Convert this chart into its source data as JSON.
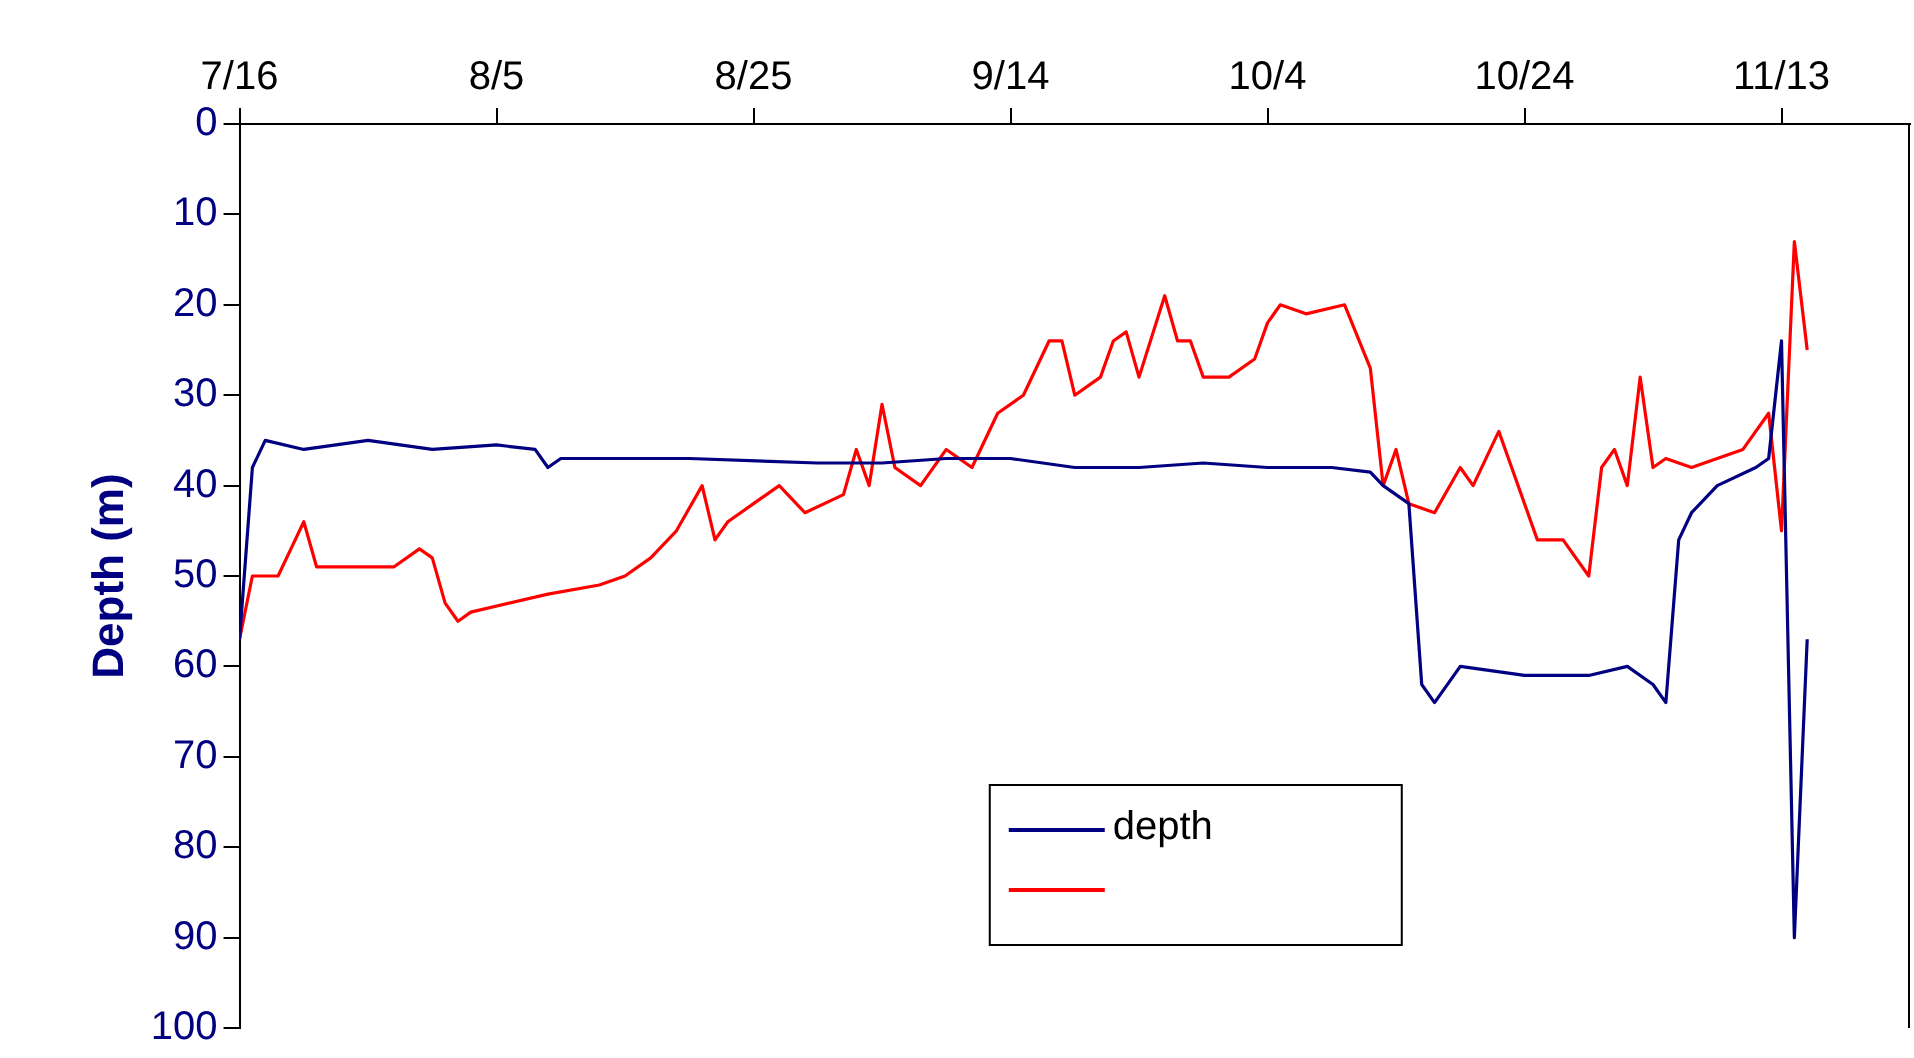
{
  "chart_data": {
    "type": "line",
    "ylabel": "Depth (m)",
    "xlim": [
      "--07-16",
      "--11-23"
    ],
    "xticks": [
      {
        "value": "--07-16",
        "label": "7/16"
      },
      {
        "value": "--08-05",
        "label": "8/5"
      },
      {
        "value": "--08-25",
        "label": "8/25"
      },
      {
        "value": "--09-14",
        "label": "9/14"
      },
      {
        "value": "--10-04",
        "label": "10/4"
      },
      {
        "value": "--10-24",
        "label": "10/24"
      },
      {
        "value": "--11-13",
        "label": "11/13"
      }
    ],
    "ylim": [
      100,
      0
    ],
    "yticks": [
      0,
      10,
      20,
      30,
      40,
      50,
      60,
      70,
      80,
      90,
      100
    ],
    "grid": false,
    "legend": "bottom",
    "marker": "none",
    "line_style": "solid",
    "series": [
      {
        "name": "depth",
        "color": "#000080",
        "x": [
          "--07-16",
          "--07-17",
          "--07-18",
          "--07-21",
          "--07-26",
          "--07-31",
          "--08-05",
          "--08-08",
          "--08-09",
          "--08-10",
          "--08-20",
          "--08-30",
          "--09-04",
          "--09-09",
          "--09-14",
          "--09-19",
          "--09-24",
          "--09-29",
          "--10-04",
          "--10-09",
          "--10-12",
          "--10-13",
          "--10-15",
          "--10-16",
          "--10-17",
          "--10-19",
          "--10-24",
          "--10-29",
          "--11-01",
          "--11-03",
          "--11-04",
          "--11-05",
          "--11-06",
          "--11-08",
          "--11-11",
          "--11-12",
          "--11-13",
          "--11-14",
          "--11-15"
        ],
        "values": [
          57,
          38,
          35,
          36,
          35,
          36,
          35.5,
          36,
          38,
          37,
          37,
          37.5,
          37.5,
          37,
          37,
          38,
          38,
          37.5,
          38,
          38,
          38.5,
          40,
          42,
          62,
          64,
          60,
          61,
          61,
          60,
          62,
          64,
          46,
          43,
          40,
          38,
          37,
          24,
          90,
          57
        ]
      },
      {
        "color": "#ff0000",
        "x": [
          "--07-16",
          "--07-17",
          "--07-19",
          "--07-20",
          "--07-21",
          "--07-22",
          "--07-28",
          "--07-30",
          "--07-31",
          "--08-01",
          "--08-02",
          "--08-03",
          "--08-09",
          "--08-13",
          "--08-15",
          "--08-17",
          "--08-19",
          "--08-21",
          "--08-22",
          "--08-23",
          "--08-25",
          "--08-27",
          "--08-29",
          "--09-01",
          "--09-02",
          "--09-03",
          "--09-04",
          "--09-05",
          "--09-07",
          "--09-09",
          "--09-11",
          "--09-13",
          "--09-15",
          "--09-17",
          "--09-18",
          "--09-19",
          "--09-21",
          "--09-22",
          "--09-23",
          "--09-24",
          "--09-26",
          "--09-27",
          "--09-28",
          "--09-29",
          "--10-01",
          "--10-03",
          "--10-04",
          "--10-05",
          "--10-07",
          "--10-10",
          "--10-12",
          "--10-13",
          "--10-14",
          "--10-15",
          "--10-17",
          "--10-19",
          "--10-20",
          "--10-22",
          "--10-23",
          "--10-24",
          "--10-25",
          "--10-27",
          "--10-29",
          "--10-30",
          "--10-31",
          "--11-01",
          "--11-02",
          "--11-03",
          "--11-04",
          "--11-06",
          "--11-08",
          "--11-10",
          "--11-12",
          "--11-13",
          "--11-14",
          "--11-15"
        ],
        "values": [
          57,
          50,
          50,
          47,
          44,
          49,
          49,
          47,
          48,
          53,
          55,
          54,
          52,
          51,
          50,
          48,
          45,
          40,
          46,
          44,
          42,
          40,
          43,
          41,
          36,
          40,
          31,
          38,
          40,
          36,
          38,
          32,
          30,
          24,
          24,
          30,
          28,
          24,
          23,
          28,
          19,
          24,
          24,
          28,
          28,
          26,
          22,
          20,
          21,
          20,
          27,
          40,
          36,
          42,
          43,
          38,
          40,
          34,
          38,
          42,
          46,
          46,
          50,
          38,
          36,
          40,
          28,
          38,
          37,
          38,
          37,
          36,
          32,
          45,
          13,
          25
        ]
      }
    ]
  }
}
